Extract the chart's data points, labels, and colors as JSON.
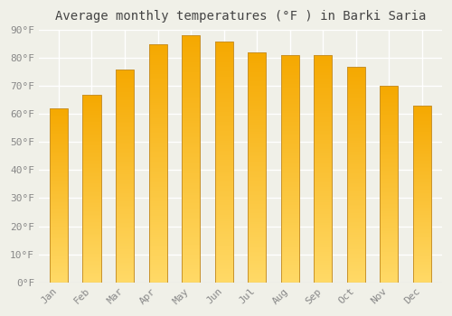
{
  "title": "Average monthly temperatures (°F ) in Barki Saria",
  "months": [
    "Jan",
    "Feb",
    "Mar",
    "Apr",
    "May",
    "Jun",
    "Jul",
    "Aug",
    "Sep",
    "Oct",
    "Nov",
    "Dec"
  ],
  "values": [
    62,
    67,
    76,
    85,
    88,
    86,
    82,
    81,
    81,
    77,
    70,
    63
  ],
  "bar_color_top": "#F5A800",
  "bar_color_bottom": "#FFD966",
  "bar_edge_color": "#C8922A",
  "background_color": "#f0f0e8",
  "grid_color": "#ffffff",
  "ylim": [
    0,
    90
  ],
  "ytick_step": 10,
  "title_fontsize": 10,
  "tick_fontsize": 8,
  "tick_color": "#888888",
  "bar_width": 0.55
}
